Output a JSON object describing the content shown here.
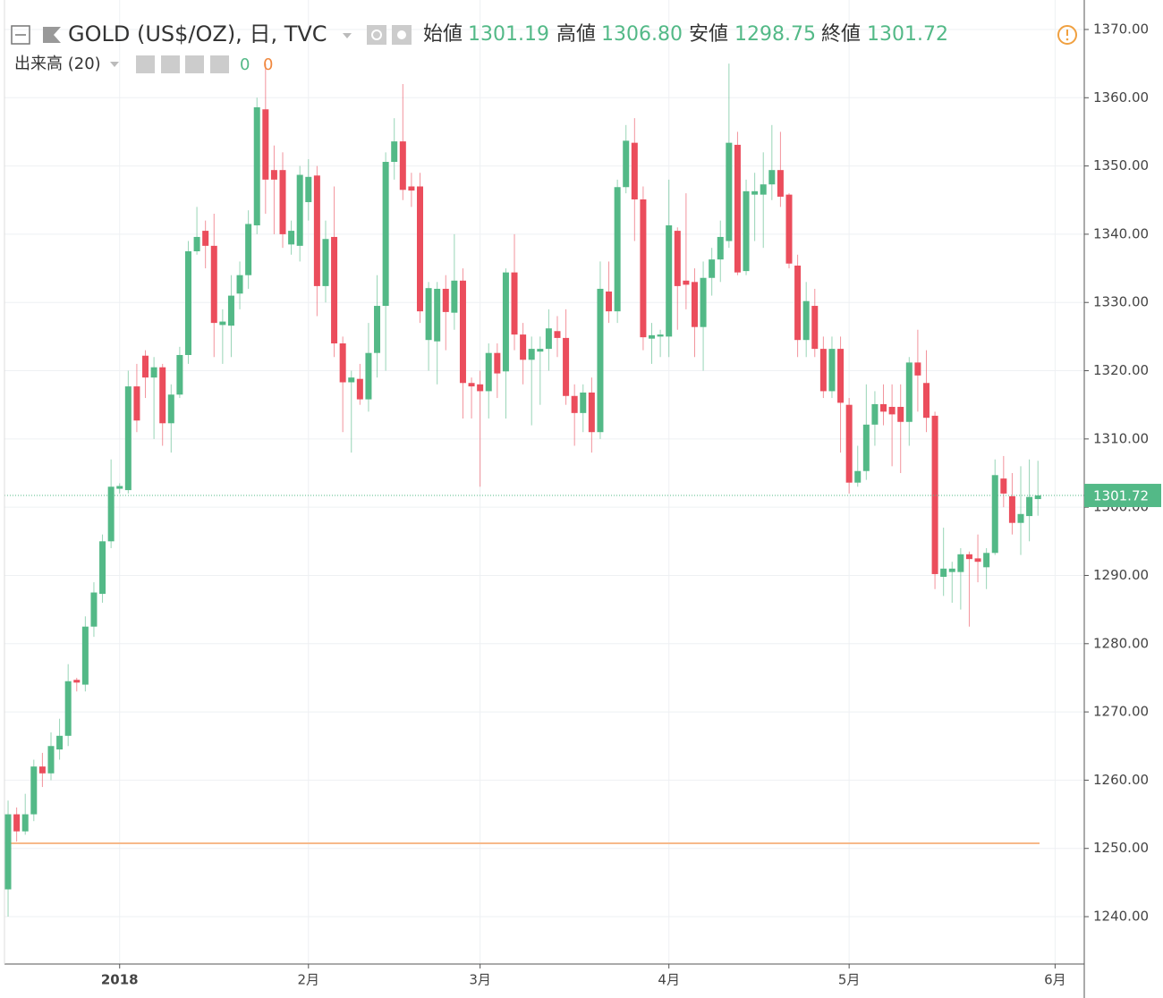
{
  "header": {
    "symbol": "GOLD (US$/OZ), 日, TVC",
    "ohlc": [
      {
        "name": "始値",
        "value": "1301.19"
      },
      {
        "name": "高値",
        "value": "1306.80"
      },
      {
        "name": "安値",
        "value": "1298.75"
      },
      {
        "name": "終値",
        "value": "1301.72"
      }
    ]
  },
  "volume": {
    "label": "出来高 (20)",
    "values": [
      0,
      0
    ]
  },
  "chart_data": {
    "type": "candlestick",
    "up_color": "#53b987",
    "down_color": "#eb4d5c",
    "open": [
      1244,
      1255,
      1252.5,
      1255,
      1262,
      1261,
      1264.5,
      1266.5,
      1274.7,
      1274,
      1282.5,
      1287.3,
      1295,
      1302.7,
      1302.5,
      1317.7,
      1322.2,
      1319,
      1320.5,
      1312.3,
      1316.5,
      1322.3,
      1337.5,
      1340.5,
      1338.3,
      1326.7,
      1326.6,
      1331.3,
      1334,
      1341.3,
      1358.3,
      1349.4,
      1349.4,
      1338.5,
      1338.3,
      1344.7,
      1348.6,
      1332.4,
      1339.6,
      1324,
      1318.3,
      1318.8,
      1315.8,
      1322.6,
      1329.5,
      1350.6,
      1353.6,
      1347,
      1347,
      1324.5,
      1324.3,
      1332,
      1328.5,
      1333.2,
      1318.2,
      1318,
      1317,
      1322.6,
      1319.9,
      1334.4,
      1325.3,
      1321.6,
      1322.8,
      1323.2,
      1325.8,
      1324.8,
      1316.3,
      1313.8,
      1316.8,
      1311,
      1331.6,
      1328.7,
      1346.9,
      1353.4,
      1345.1,
      1324.7,
      1325,
      1325,
      1340.5,
      1333.2,
      1333,
      1326.4,
      1333.6,
      1336.3,
      1339,
      1353.1,
      1334.6,
      1345.8,
      1345.8,
      1347.3,
      1349.4,
      1345.8,
      1335.4,
      1324.5,
      1329.5,
      1323.2,
      1317,
      1323.2,
      1315,
      1303.6,
      1305.3,
      1312.1,
      1315.1,
      1314.7,
      1314.7,
      1312.5,
      1321.2,
      1318.2,
      1313.4,
      1289.8,
      1290.5,
      1290.5,
      1293.1,
      1292.5,
      1291.2,
      1293.3,
      1304.2,
      1301.6,
      1297.7,
      1298.7,
      1301.19
    ],
    "high": [
      1257,
      1256,
      1258,
      1263,
      1264,
      1267,
      1269,
      1277,
      1275,
      1284,
      1289,
      1296,
      1307,
      1303.5,
      1320,
      1321,
      1323,
      1322,
      1321,
      1318,
      1323.5,
      1339,
      1344,
      1342,
      1343,
      1329,
      1334,
      1336,
      1343.5,
      1360,
      1365,
      1353,
      1352,
      1342,
      1350,
      1351,
      1350,
      1342,
      1347,
      1325,
      1320,
      1321,
      1327,
      1334,
      1352,
      1357,
      1362,
      1349,
      1349,
      1333,
      1333,
      1334,
      1340,
      1335,
      1319,
      1320,
      1324,
      1324,
      1335,
      1340,
      1327,
      1325,
      1325,
      1329,
      1328,
      1329,
      1318,
      1318,
      1319,
      1336,
      1336,
      1348,
      1356,
      1357,
      1347,
      1327,
      1326,
      1348,
      1341,
      1346,
      1335,
      1336,
      1338,
      1342,
      1365,
      1355,
      1348,
      1349,
      1352,
      1356,
      1355,
      1346,
      1337,
      1333,
      1332,
      1325,
      1325,
      1325,
      1316,
      1309,
      1318,
      1317,
      1318,
      1318,
      1318,
      1322,
      1326,
      1323,
      1314,
      1297,
      1292,
      1294,
      1293.5,
      1296,
      1294,
      1307,
      1307.5,
      1305,
      1306,
      1307,
      1306.8
    ],
    "low": [
      1240,
      1251,
      1252,
      1254,
      1259,
      1260,
      1263,
      1265,
      1273,
      1273,
      1281,
      1286,
      1294,
      1302,
      1302,
      1311,
      1316,
      1310,
      1309,
      1308,
      1316,
      1321,
      1337,
      1335,
      1322,
      1321,
      1322,
      1329,
      1332,
      1340,
      1343,
      1340,
      1338,
      1337,
      1336,
      1342,
      1328,
      1330,
      1322,
      1311,
      1308,
      1315,
      1314,
      1319,
      1320,
      1348,
      1345,
      1344,
      1327,
      1320,
      1318,
      1323,
      1326,
      1313,
      1313,
      1303,
      1313,
      1316,
      1313,
      1323,
      1318,
      1312,
      1315,
      1320,
      1322,
      1315,
      1309,
      1311,
      1308,
      1310,
      1327,
      1327,
      1346,
      1339,
      1323,
      1321,
      1322,
      1322,
      1326,
      1329,
      1322,
      1320,
      1331,
      1333,
      1338,
      1334,
      1334,
      1339,
      1338,
      1345,
      1344,
      1335,
      1322,
      1322,
      1322,
      1316,
      1316,
      1308,
      1302,
      1303,
      1304,
      1309,
      1312,
      1306,
      1305,
      1309,
      1314,
      1311,
      1288,
      1287,
      1286,
      1285,
      1282.5,
      1289,
      1288,
      1293,
      1300,
      1296,
      1293,
      1295,
      1298.75
    ],
    "close": [
      1255,
      1252.5,
      1255,
      1262,
      1261,
      1265,
      1266.5,
      1274.5,
      1274.3,
      1282.5,
      1287.5,
      1295,
      1303,
      1303.1,
      1317.7,
      1312.7,
      1319,
      1320.5,
      1312.3,
      1316.5,
      1322.3,
      1337.5,
      1339.6,
      1338.3,
      1327,
      1327.2,
      1331,
      1334,
      1341.5,
      1358.6,
      1348,
      1348,
      1340,
      1340.5,
      1348.7,
      1348.4,
      1332.4,
      1339.3,
      1324,
      1318.3,
      1319,
      1315.8,
      1322.6,
      1329.5,
      1350.6,
      1353.6,
      1346.5,
      1346.4,
      1328.7,
      1332.1,
      1332,
      1328.6,
      1333.2,
      1318.2,
      1317.7,
      1317,
      1322.6,
      1319.6,
      1334.4,
      1325.3,
      1321.6,
      1323.2,
      1323.2,
      1326.2,
      1324.8,
      1316.3,
      1313.8,
      1316.8,
      1311,
      1332,
      1328.7,
      1346.9,
      1353.7,
      1345.1,
      1324.9,
      1325.2,
      1325.3,
      1341.3,
      1332.4,
      1332.6,
      1326.4,
      1333.6,
      1336.3,
      1339.6,
      1353.4,
      1334.4,
      1346.3,
      1346.3,
      1347.3,
      1349.4,
      1345.5,
      1335.7,
      1324.5,
      1330.2,
      1323.2,
      1317,
      1323.2,
      1315.3,
      1303.6,
      1305.3,
      1312.1,
      1315.1,
      1314,
      1313.6,
      1312.5,
      1321.2,
      1319.3,
      1313.1,
      1290.2,
      1291,
      1291,
      1293.1,
      1292.4,
      1292,
      1293.3,
      1304.7,
      1302,
      1297.7,
      1299,
      1301.5,
      1301.72
    ],
    "xlim": [
      -0.42,
      125.4
    ],
    "xticks": [
      {
        "value": 13,
        "label": "2018"
      },
      {
        "value": 35,
        "label": "2月"
      },
      {
        "value": 55,
        "label": "3月"
      },
      {
        "value": 77,
        "label": "4月"
      },
      {
        "value": 98,
        "label": "5月"
      },
      {
        "value": 122,
        "label": "6月"
      }
    ],
    "ylim": [
      1233.06,
      1374.32
    ],
    "yticks": [
      {
        "value": 1240,
        "label": "1240.00"
      },
      {
        "value": 1250,
        "label": "1250.00"
      },
      {
        "value": 1260,
        "label": "1260.00"
      },
      {
        "value": 1270,
        "label": "1270.00"
      },
      {
        "value": 1280,
        "label": "1280.00"
      },
      {
        "value": 1290,
        "label": "1290.00"
      },
      {
        "value": 1300,
        "label": "1300.00"
      },
      {
        "value": 1310,
        "label": "1310.00"
      },
      {
        "value": 1320,
        "label": "1320.00"
      },
      {
        "value": 1330,
        "label": "1330.00"
      },
      {
        "value": 1340,
        "label": "1340.00"
      },
      {
        "value": 1350,
        "label": "1350.00"
      },
      {
        "value": 1360,
        "label": "1360.00"
      },
      {
        "value": 1370,
        "label": "1370.00"
      }
    ],
    "grid": true,
    "last_price": {
      "value": 1301.72,
      "label": "1301.72"
    }
  }
}
